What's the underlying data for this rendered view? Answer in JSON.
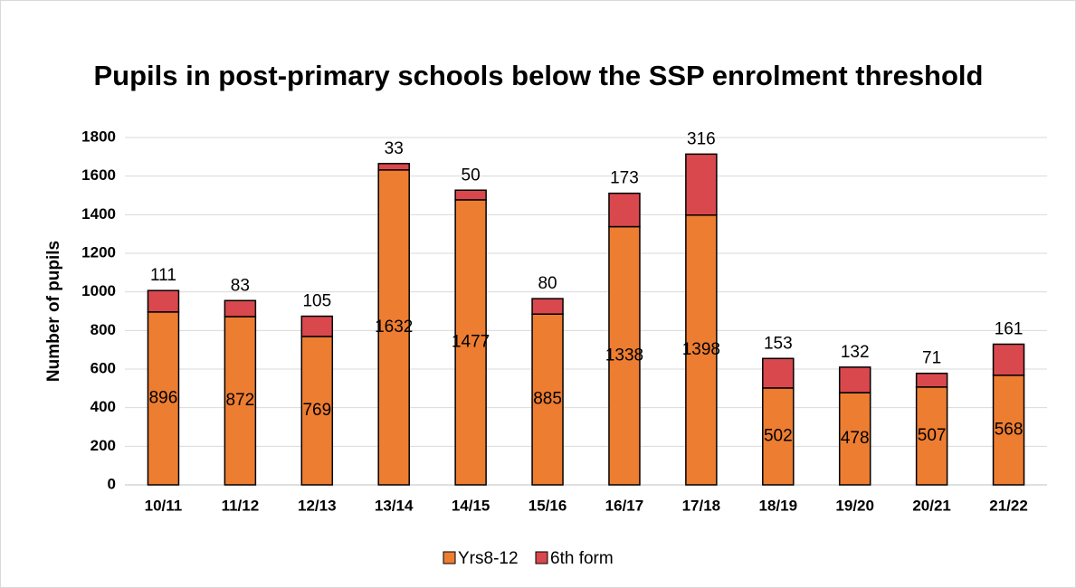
{
  "chart_data": {
    "type": "stacked_bar",
    "title": "Pupils in post-primary schools below the SSP enrolment threshold",
    "y_label": "Number of pupils",
    "categories": [
      "10/11",
      "11/12",
      "12/13",
      "13/14",
      "14/15",
      "15/16",
      "16/17",
      "17/18",
      "18/19",
      "19/20",
      "20/21",
      "21/22"
    ],
    "series": [
      {
        "name": "Yrs8-12",
        "color": "#ed7d31",
        "values": [
          896,
          872,
          769,
          1632,
          1477,
          885,
          1338,
          1398,
          502,
          478,
          507,
          568
        ]
      },
      {
        "name": "6th form",
        "color": "#d9484d",
        "values": [
          111,
          83,
          105,
          33,
          50,
          80,
          173,
          316,
          153,
          132,
          71,
          161
        ]
      }
    ],
    "ylim": [
      0,
      1800
    ],
    "yticks": [
      0,
      200,
      400,
      600,
      800,
      1000,
      1200,
      1400,
      1600,
      1800
    ],
    "grid": true,
    "legend": "bottom"
  }
}
